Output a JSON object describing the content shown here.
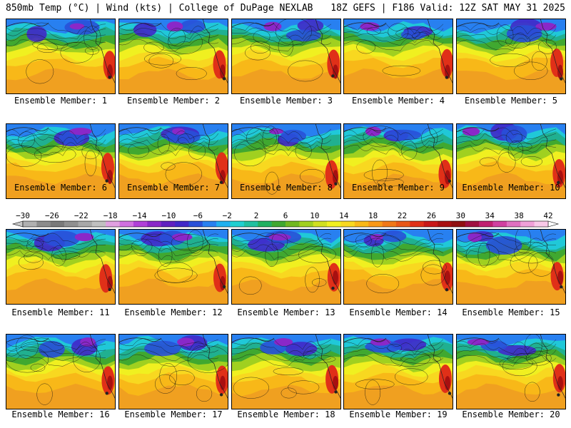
{
  "header": {
    "left_title": "850mb Temp (°C) | Wind (kts) | College of DuPage NEXLAB",
    "right_title": "18Z GEFS | F186 Valid: 12Z SAT MAY 31 2025"
  },
  "panels": [
    {
      "member": 1,
      "label": "Ensemble Member: 1"
    },
    {
      "member": 2,
      "label": "Ensemble Member: 2"
    },
    {
      "member": 3,
      "label": "Ensemble Member: 3"
    },
    {
      "member": 4,
      "label": "Ensemble Member: 4"
    },
    {
      "member": 5,
      "label": "Ensemble Member: 5"
    },
    {
      "member": 6,
      "label": "Ensemble Member: 6"
    },
    {
      "member": 7,
      "label": "Ensemble Member: 7"
    },
    {
      "member": 8,
      "label": "Ensemble Member: 8"
    },
    {
      "member": 9,
      "label": "Ensemble Member: 9"
    },
    {
      "member": 10,
      "label": "Ensemble Member: 10"
    },
    {
      "member": 11,
      "label": "Ensemble Member: 11"
    },
    {
      "member": 12,
      "label": "Ensemble Member: 12"
    },
    {
      "member": 13,
      "label": "Ensemble Member: 13"
    },
    {
      "member": 14,
      "label": "Ensemble Member: 14"
    },
    {
      "member": 15,
      "label": "Ensemble Member: 15"
    },
    {
      "member": 16,
      "label": "Ensemble Member: 16"
    },
    {
      "member": 17,
      "label": "Ensemble Member: 17"
    },
    {
      "member": 18,
      "label": "Ensemble Member: 18"
    },
    {
      "member": 19,
      "label": "Ensemble Member: 19"
    },
    {
      "member": 20,
      "label": "Ensemble Member: 20"
    }
  ],
  "colorbar": {
    "tick_labels": [
      "−30",
      "−26",
      "−22",
      "−18",
      "−14",
      "−10",
      "−6",
      "−2",
      "2",
      "6",
      "10",
      "14",
      "18",
      "22",
      "26",
      "30",
      "34",
      "38",
      "42"
    ],
    "colors": [
      "#b0b0b0",
      "#8c8c8c",
      "#7a7a7a",
      "#909090",
      "#a8a8a8",
      "#c0c0c0",
      "#e0a0e0",
      "#d070e0",
      "#b040d8",
      "#8a28c8",
      "#6020c0",
      "#4028c8",
      "#2850d8",
      "#2880f0",
      "#20b0f0",
      "#20d0d0",
      "#20c0a0",
      "#20b060",
      "#40a830",
      "#70b820",
      "#a0d020",
      "#d0e020",
      "#f0f020",
      "#f8d820",
      "#f8b818",
      "#f89818",
      "#f07818",
      "#e85818",
      "#e03018",
      "#c81818",
      "#a81010",
      "#901010",
      "#a01040",
      "#c02070",
      "#d040a0",
      "#e070c0",
      "#f0a0d8",
      "#f8c8e8"
    ]
  }
}
